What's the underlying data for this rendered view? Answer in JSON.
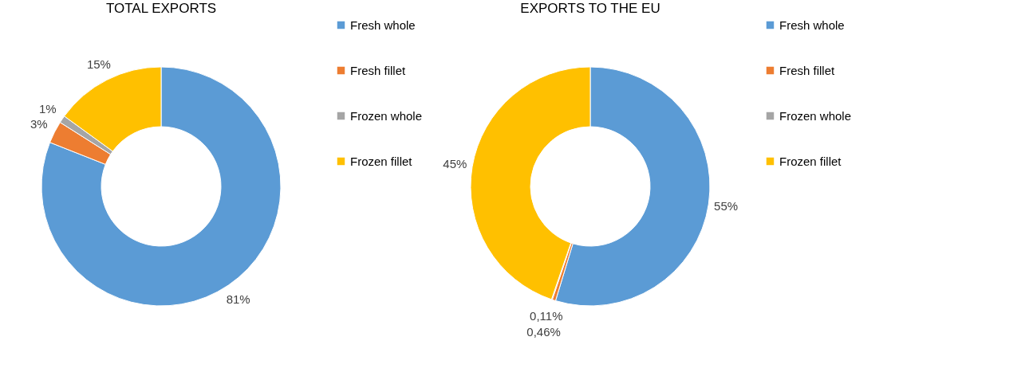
{
  "chart_data": [
    {
      "type": "donut",
      "title": "TOTAL  EXPORTS",
      "categories": [
        "Fresh whole",
        "Fresh fillet",
        "Frozen whole",
        "Frozen fillet"
      ],
      "values": [
        81,
        3,
        1,
        15
      ],
      "colors": [
        "#5b9bd5",
        "#ed7d31",
        "#a5a5a5",
        "#ffc000"
      ],
      "value_labels": [
        "81%",
        "3%",
        "1%",
        "15%"
      ],
      "legend": "right"
    },
    {
      "type": "donut",
      "title": "EXPORTS TO THE EU",
      "categories": [
        "Fresh whole",
        "Fresh fillet",
        "Frozen whole",
        "Frozen fillet"
      ],
      "values": [
        55,
        0.46,
        0.11,
        45
      ],
      "colors": [
        "#5b9bd5",
        "#ed7d31",
        "#a5a5a5",
        "#ffc000"
      ],
      "value_labels": [
        "55%",
        "0,46%",
        "0,11%",
        "45%"
      ],
      "legend": "right"
    }
  ]
}
